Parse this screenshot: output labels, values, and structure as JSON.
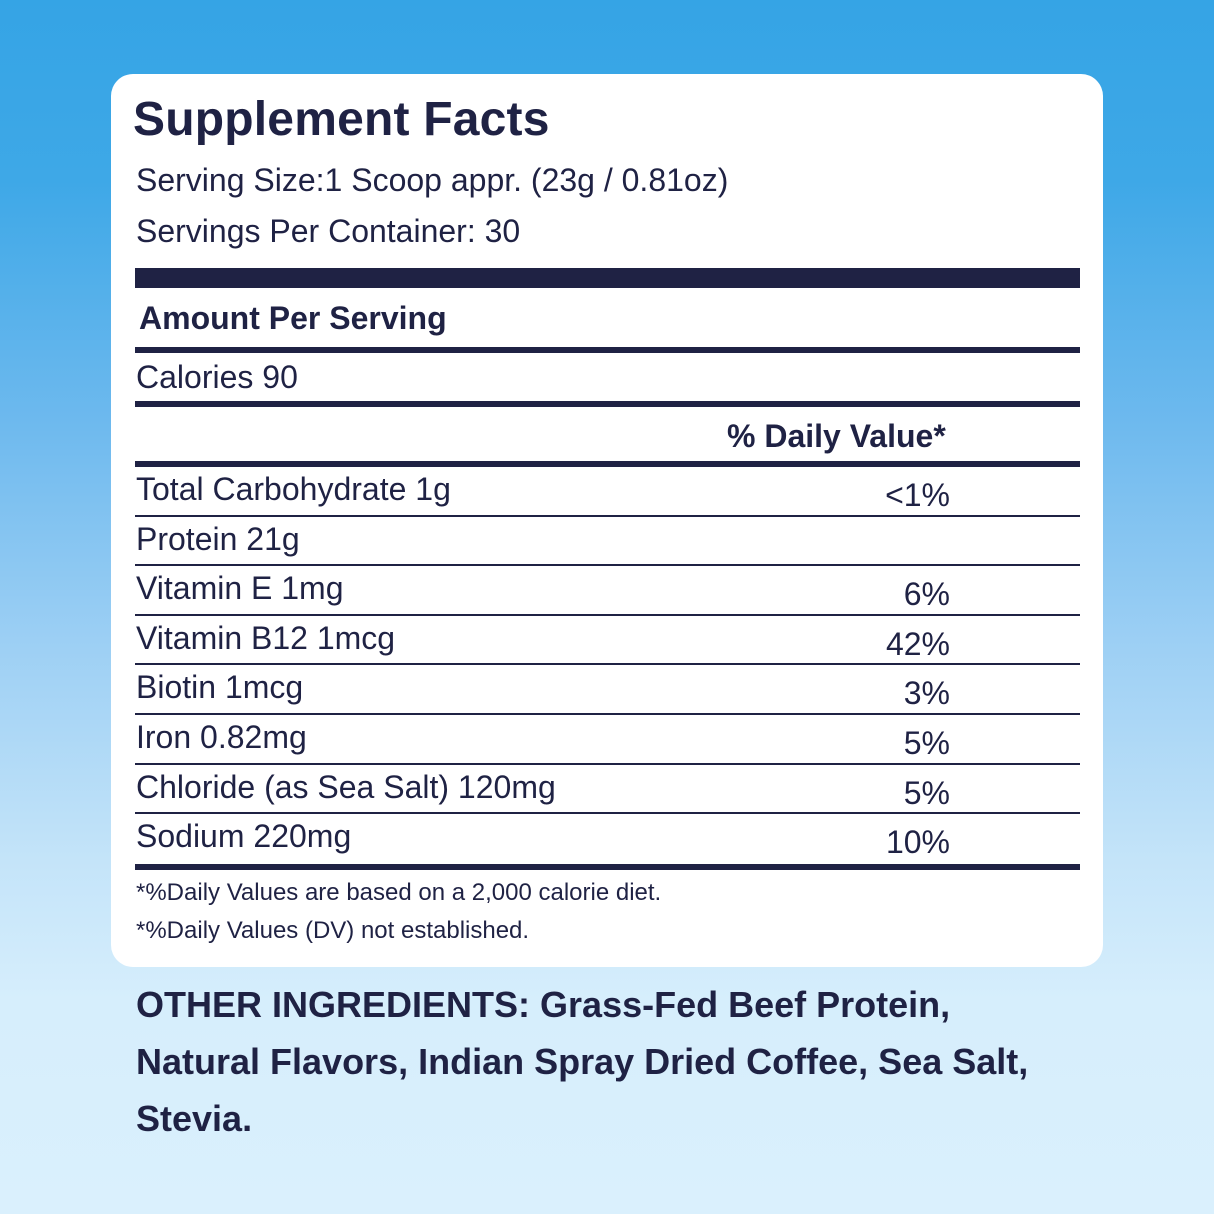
{
  "panel": {
    "title": "Supplement Facts",
    "serving_size": "Serving Size:1 Scoop appr. (23g / 0.81oz)",
    "servings_per_container": "Servings Per Container: 30",
    "amount_per_serving": "Amount Per Serving",
    "calories": "Calories 90",
    "daily_value_header": "% Daily Value*",
    "nutrients": [
      {
        "name": "Total Carbohydrate 1g",
        "dv": "<1%"
      },
      {
        "name": "Protein 21g",
        "dv": ""
      },
      {
        "name": "Vitamin E 1mg",
        "dv": "6%"
      },
      {
        "name": "Vitamin B12 1mcg",
        "dv": "42%"
      },
      {
        "name": "Biotin 1mcg",
        "dv": "3%"
      },
      {
        "name": "Iron 0.82mg",
        "dv": "5%"
      },
      {
        "name": "Chloride (as Sea Salt) 120mg",
        "dv": "5%"
      },
      {
        "name": "Sodium 220mg",
        "dv": "10%"
      }
    ],
    "footnotes": [
      "*%Daily Values are based on a 2,000 calorie diet.",
      "*%Daily Values (DV) not established."
    ]
  },
  "other_ingredients": {
    "label": "OTHER INGREDIENTS:",
    "text": "Grass-Fed Beef Protein, Natural Flavors, Indian Spray Dried Coffee, Sea Salt, Stevia."
  },
  "colors": {
    "text_navy": "#1f2244",
    "background_top": "#35a4e5",
    "background_bottom": "#daf0fd",
    "card": "#ffffff"
  }
}
